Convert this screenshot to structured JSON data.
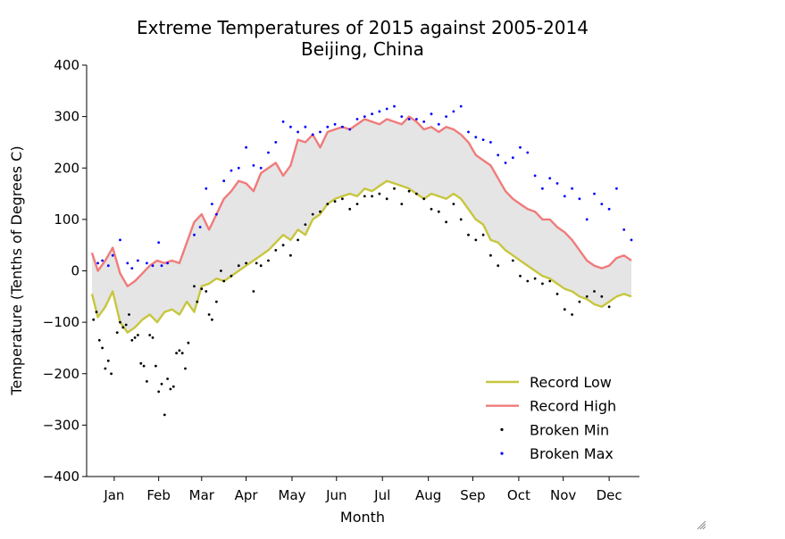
{
  "chart_data": {
    "type": "line",
    "title": "Extreme Temperatures of 2015 against 2005-2014",
    "subtitle": "Beijing, China",
    "xlabel": "Month",
    "ylabel": "Temperature (Tenths of Degrees C)",
    "ylim": [
      -400,
      400
    ],
    "yticks": [
      400,
      300,
      200,
      100,
      0,
      -100,
      -200,
      -300,
      -400
    ],
    "xlim": [
      1,
      365
    ],
    "xticks": [
      {
        "label": "Jan",
        "day": 16
      },
      {
        "label": "Feb",
        "day": 46
      },
      {
        "label": "Mar",
        "day": 75
      },
      {
        "label": "Apr",
        "day": 105
      },
      {
        "label": "May",
        "day": 136
      },
      {
        "label": "Jun",
        "day": 166
      },
      {
        "label": "Jul",
        "day": 197
      },
      {
        "label": "Aug",
        "day": 228
      },
      {
        "label": "Sep",
        "day": 258
      },
      {
        "label": "Oct",
        "day": 289
      },
      {
        "label": "Nov",
        "day": 319
      },
      {
        "label": "Dec",
        "day": 350
      }
    ],
    "fill_between": {
      "color": "#e5e5e5",
      "between": [
        "Record Low",
        "Record High"
      ]
    },
    "legend_position": "lower-right",
    "series": [
      {
        "name": "Record Low",
        "kind": "line",
        "color": "#c7c63e",
        "x": [
          1,
          5,
          10,
          15,
          20,
          25,
          30,
          35,
          40,
          45,
          50,
          55,
          60,
          65,
          70,
          75,
          80,
          85,
          90,
          95,
          100,
          105,
          110,
          115,
          120,
          125,
          130,
          135,
          140,
          145,
          150,
          155,
          160,
          165,
          170,
          175,
          180,
          185,
          190,
          195,
          200,
          205,
          210,
          215,
          220,
          225,
          230,
          235,
          240,
          245,
          250,
          255,
          260,
          265,
          270,
          275,
          280,
          285,
          290,
          295,
          300,
          305,
          310,
          315,
          320,
          325,
          330,
          335,
          340,
          345,
          350,
          355,
          360,
          365
        ],
        "y": [
          -45,
          -90,
          -70,
          -40,
          -100,
          -120,
          -110,
          -95,
          -85,
          -100,
          -80,
          -75,
          -85,
          -60,
          -80,
          -30,
          -25,
          -15,
          -20,
          -10,
          0,
          10,
          20,
          30,
          40,
          55,
          70,
          60,
          80,
          70,
          100,
          110,
          130,
          140,
          145,
          150,
          145,
          160,
          155,
          165,
          175,
          170,
          165,
          160,
          150,
          140,
          150,
          145,
          140,
          150,
          140,
          120,
          100,
          90,
          60,
          55,
          40,
          30,
          20,
          10,
          0,
          -10,
          -15,
          -25,
          -35,
          -40,
          -50,
          -55,
          -65,
          -70,
          -60,
          -50,
          -45,
          -50
        ]
      },
      {
        "name": "Record High",
        "kind": "line",
        "color": "#f07b7b",
        "x": [
          1,
          5,
          10,
          15,
          20,
          25,
          30,
          35,
          40,
          45,
          50,
          55,
          60,
          65,
          70,
          75,
          80,
          85,
          90,
          95,
          100,
          105,
          110,
          115,
          120,
          125,
          130,
          135,
          140,
          145,
          150,
          155,
          160,
          165,
          170,
          175,
          180,
          185,
          190,
          195,
          200,
          205,
          210,
          215,
          220,
          225,
          230,
          235,
          240,
          245,
          250,
          255,
          260,
          265,
          270,
          275,
          280,
          285,
          290,
          295,
          300,
          305,
          310,
          315,
          320,
          325,
          330,
          335,
          340,
          345,
          350,
          355,
          360,
          365
        ],
        "y": [
          35,
          0,
          20,
          45,
          -5,
          -30,
          -20,
          -5,
          10,
          20,
          15,
          20,
          15,
          55,
          95,
          110,
          80,
          110,
          140,
          155,
          175,
          170,
          155,
          190,
          200,
          210,
          185,
          205,
          255,
          250,
          265,
          240,
          270,
          275,
          280,
          275,
          285,
          295,
          290,
          285,
          295,
          290,
          285,
          300,
          290,
          275,
          280,
          270,
          280,
          275,
          265,
          250,
          225,
          215,
          205,
          180,
          155,
          140,
          130,
          120,
          115,
          100,
          100,
          85,
          75,
          60,
          40,
          20,
          10,
          5,
          10,
          25,
          30,
          20
        ]
      },
      {
        "name": "Broken Min",
        "kind": "scatter",
        "color": "#000000",
        "x": [
          2,
          4,
          6,
          8,
          10,
          12,
          14,
          18,
          20,
          22,
          24,
          26,
          28,
          30,
          32,
          34,
          36,
          38,
          40,
          42,
          44,
          46,
          48,
          50,
          52,
          54,
          56,
          58,
          60,
          62,
          64,
          66,
          70,
          72,
          75,
          78,
          80,
          82,
          85,
          88,
          90,
          95,
          100,
          105,
          110,
          112,
          115,
          120,
          125,
          130,
          135,
          140,
          145,
          150,
          155,
          160,
          165,
          170,
          175,
          180,
          185,
          190,
          195,
          200,
          205,
          210,
          215,
          220,
          225,
          230,
          235,
          240,
          245,
          250,
          255,
          260,
          265,
          270,
          275,
          285,
          290,
          295,
          300,
          305,
          310,
          315,
          320,
          325,
          330,
          335,
          340,
          345,
          350
        ],
        "y": [
          -95,
          -80,
          -135,
          -150,
          -190,
          -175,
          -200,
          -120,
          -100,
          -110,
          -105,
          -85,
          -135,
          -130,
          -125,
          -180,
          -185,
          -215,
          -125,
          -130,
          -185,
          -235,
          -220,
          -280,
          -210,
          -230,
          -225,
          -160,
          -155,
          -160,
          -190,
          -140,
          -30,
          -60,
          -35,
          -40,
          -85,
          -95,
          -60,
          0,
          -20,
          -10,
          10,
          15,
          -40,
          15,
          10,
          20,
          40,
          50,
          30,
          60,
          90,
          110,
          115,
          130,
          135,
          140,
          120,
          130,
          145,
          145,
          150,
          140,
          160,
          130,
          155,
          150,
          140,
          120,
          115,
          95,
          130,
          100,
          70,
          60,
          70,
          30,
          10,
          20,
          -10,
          -20,
          -15,
          -25,
          -20,
          -45,
          -75,
          -85,
          -60,
          -50,
          -40,
          -50,
          -70
        ]
      },
      {
        "name": "Broken Max",
        "kind": "scatter",
        "color": "#0000ff",
        "x": [
          5,
          8,
          12,
          15,
          20,
          25,
          28,
          32,
          38,
          42,
          46,
          48,
          52,
          70,
          74,
          78,
          82,
          85,
          90,
          95,
          100,
          105,
          110,
          115,
          120,
          125,
          130,
          135,
          140,
          145,
          150,
          155,
          160,
          165,
          170,
          175,
          180,
          185,
          190,
          195,
          200,
          205,
          210,
          215,
          220,
          225,
          230,
          235,
          240,
          245,
          250,
          255,
          260,
          265,
          270,
          275,
          280,
          285,
          290,
          295,
          300,
          305,
          310,
          315,
          320,
          325,
          330,
          335,
          340,
          345,
          350,
          355,
          360,
          365
        ],
        "y": [
          15,
          20,
          10,
          30,
          60,
          15,
          5,
          20,
          15,
          10,
          55,
          10,
          15,
          70,
          85,
          160,
          130,
          110,
          175,
          195,
          200,
          240,
          205,
          200,
          230,
          250,
          290,
          280,
          270,
          280,
          265,
          270,
          280,
          285,
          280,
          275,
          295,
          300,
          305,
          310,
          315,
          320,
          300,
          295,
          295,
          290,
          305,
          285,
          300,
          310,
          320,
          270,
          260,
          255,
          250,
          225,
          210,
          220,
          240,
          230,
          185,
          160,
          180,
          170,
          145,
          160,
          140,
          100,
          150,
          130,
          120,
          160,
          80,
          60
        ]
      }
    ]
  }
}
